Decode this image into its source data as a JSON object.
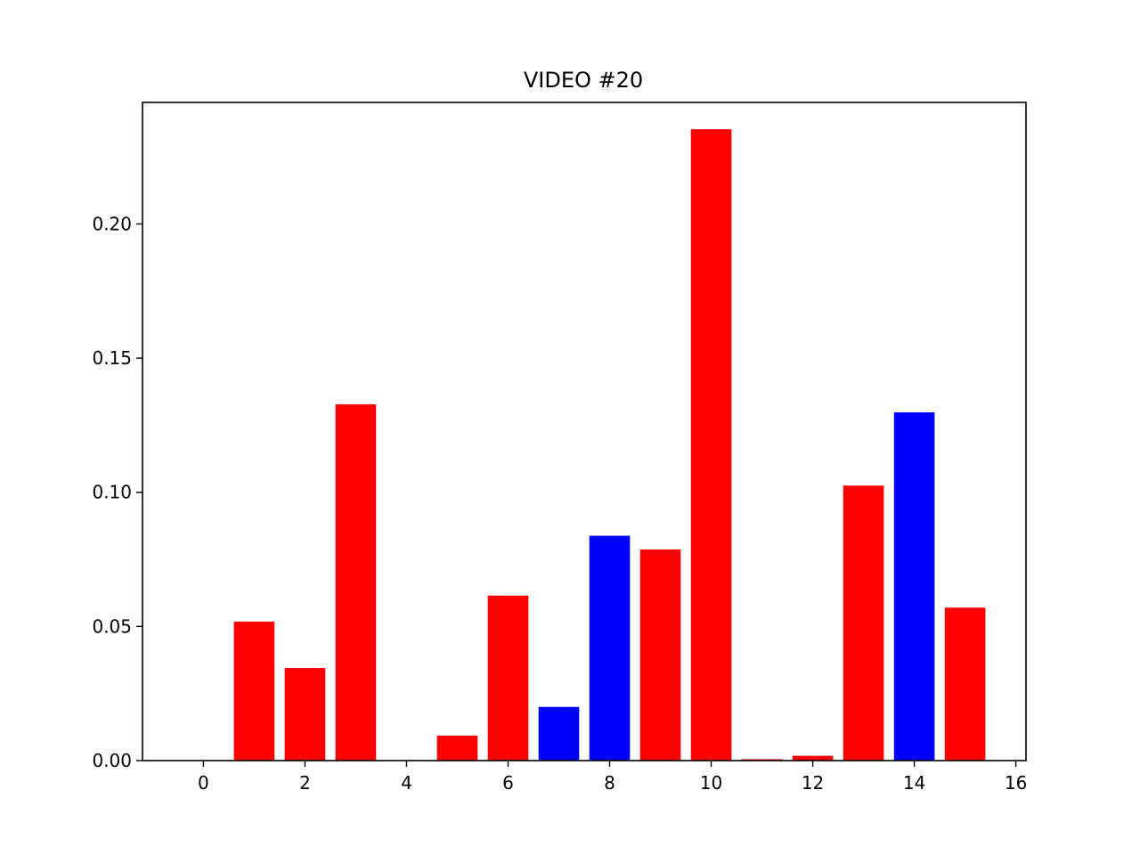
{
  "chart_data": {
    "type": "bar",
    "title": "VIDEO #20",
    "xlabel": "",
    "ylabel": "",
    "x": [
      0,
      1,
      2,
      3,
      4,
      5,
      6,
      7,
      8,
      9,
      10,
      11,
      12,
      13,
      14,
      15
    ],
    "values": [
      0.0,
      0.0518,
      0.0345,
      0.1328,
      0.0,
      0.0093,
      0.0615,
      0.02,
      0.0838,
      0.0787,
      0.2353,
      0.0005,
      0.0018,
      0.1025,
      0.1298,
      0.057
    ],
    "bar_colors": [
      "#ff0000",
      "#ff0000",
      "#ff0000",
      "#ff0000",
      "#ff0000",
      "#ff0000",
      "#ff0000",
      "#0000ff",
      "#0000ff",
      "#ff0000",
      "#ff0000",
      "#ff0000",
      "#ff0000",
      "#ff0000",
      "#0000ff",
      "#ff0000"
    ],
    "xlim": [
      -1.2,
      16.2
    ],
    "ylim": [
      0,
      0.2453
    ],
    "xticks": [
      "0",
      "2",
      "4",
      "6",
      "8",
      "10",
      "12",
      "14",
      "16"
    ],
    "yticks": [
      "0.00",
      "0.05",
      "0.10",
      "0.15",
      "0.20"
    ],
    "grid": false
  }
}
